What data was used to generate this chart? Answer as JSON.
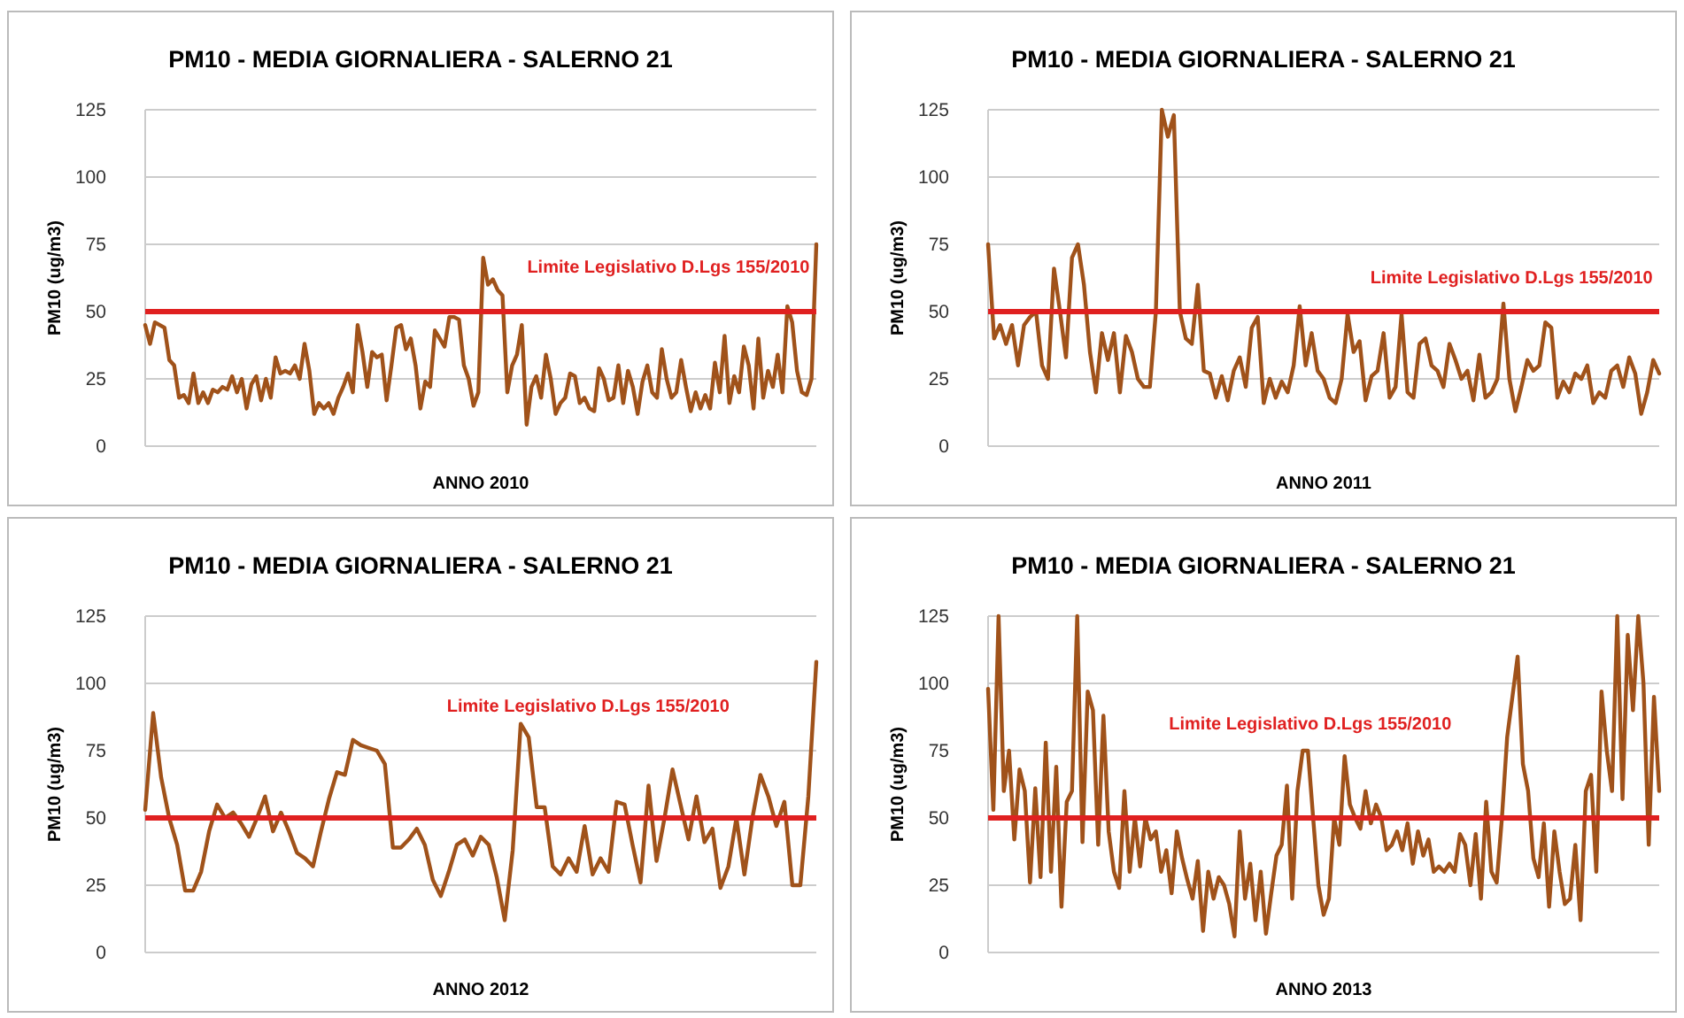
{
  "chart_data": [
    {
      "type": "line",
      "title": "PM10 - MEDIA GIORNALIERA - SALERNO 21",
      "xlabel": "ANNO 2010",
      "ylabel": "PM10 (ug/m3)",
      "ylim": [
        0,
        125
      ],
      "yticks": [
        0,
        25,
        50,
        75,
        100,
        125
      ],
      "grid": "y",
      "tick_labels": "y",
      "ref_lines": [
        {
          "axis": "y",
          "value": 50,
          "label": "Limite Legislativo  D.Lgs 155/2010",
          "color": "#e02020"
        }
      ],
      "categories": [
        null,
        null,
        null,
        null,
        null,
        null,
        null,
        null,
        null,
        null,
        null,
        null,
        null,
        null,
        null,
        null,
        null,
        null,
        null,
        null,
        null,
        null,
        null,
        null,
        null,
        null,
        null,
        null,
        null,
        null,
        null,
        null,
        null,
        null,
        null,
        null,
        null,
        null,
        null,
        null,
        null,
        null,
        null,
        null,
        null,
        null,
        null,
        null,
        null,
        null,
        null,
        null,
        null,
        null,
        null,
        null,
        null,
        null,
        null,
        null,
        null,
        null,
        null,
        null,
        null,
        null,
        null,
        null,
        null,
        null,
        null,
        null,
        null,
        null,
        null,
        null,
        null,
        null,
        null,
        null,
        null,
        null,
        null,
        null,
        null,
        null,
        null,
        null,
        null,
        null,
        null,
        null,
        null,
        null,
        null,
        null,
        null,
        null,
        null,
        null,
        null,
        null,
        null,
        null,
        null,
        null,
        null,
        null,
        null,
        null,
        null,
        null,
        null,
        null,
        null,
        null,
        null,
        null,
        null,
        null,
        null,
        null,
        null,
        null,
        null,
        null,
        null,
        null,
        null,
        null,
        null,
        null,
        null,
        null,
        null,
        null,
        null,
        null,
        null,
        null
      ],
      "series": [
        {
          "color": "#a0521a",
          "values": [
            45,
            38,
            46,
            45,
            44,
            32,
            30,
            18,
            19,
            16,
            27,
            16,
            20,
            16,
            21,
            20,
            22,
            21,
            26,
            20,
            25,
            14,
            23,
            26,
            17,
            25,
            18,
            33,
            27,
            28,
            27,
            30,
            25,
            38,
            28,
            12,
            16,
            14,
            16,
            12,
            18,
            22,
            27,
            20,
            45,
            35,
            22,
            35,
            33,
            34,
            17,
            30,
            44,
            45,
            36,
            40,
            30,
            14,
            24,
            22,
            43,
            40,
            37,
            48,
            48,
            47,
            30,
            25,
            15,
            20,
            70,
            60,
            62,
            58,
            56,
            20,
            30,
            34,
            45,
            8,
            22,
            26,
            18,
            34,
            25,
            12,
            16,
            18,
            27,
            26,
            16,
            18,
            14,
            13,
            29,
            25,
            17,
            18,
            30,
            16,
            28,
            22,
            12,
            24,
            30,
            20,
            18,
            36,
            25,
            18,
            20,
            32,
            22,
            13,
            20,
            14,
            19,
            14,
            31,
            20,
            41,
            16,
            26,
            20,
            37,
            30,
            14,
            40,
            18,
            28,
            22,
            34,
            20,
            52,
            46,
            28,
            20,
            19,
            25,
            75
          ]
        }
      ]
    },
    {
      "type": "line",
      "title": "PM10 - MEDIA GIORNALIERA - SALERNO 21",
      "xlabel": "ANNO 2011",
      "ylabel": "PM10 (ug/m3)",
      "ylim": [
        0,
        125
      ],
      "yticks": [
        0,
        25,
        50,
        75,
        100,
        125
      ],
      "grid": "y",
      "tick_labels": "y",
      "ref_lines": [
        {
          "axis": "y",
          "value": 50,
          "label": "Limite Legislativo  D.Lgs 155/2010",
          "color": "#e02020"
        }
      ],
      "categories": [
        null,
        null,
        null,
        null,
        null,
        null,
        null,
        null,
        null,
        null,
        null,
        null,
        null,
        null,
        null,
        null,
        null,
        null,
        null,
        null,
        null,
        null,
        null,
        null,
        null,
        null,
        null,
        null,
        null,
        null,
        null,
        null,
        null,
        null,
        null,
        null,
        null,
        null,
        null,
        null,
        null,
        null,
        null,
        null,
        null,
        null,
        null,
        null,
        null,
        null,
        null,
        null,
        null,
        null,
        null,
        null,
        null,
        null,
        null,
        null,
        null,
        null,
        null,
        null,
        null,
        null,
        null,
        null,
        null,
        null,
        null,
        null,
        null,
        null,
        null,
        null,
        null,
        null,
        null,
        null,
        null,
        null,
        null,
        null,
        null,
        null,
        null,
        null,
        null,
        null,
        null,
        null,
        null,
        null,
        null,
        null,
        null,
        null,
        null,
        null,
        null,
        null,
        null,
        null,
        null,
        null,
        null,
        null,
        null,
        null,
        null,
        null,
        null
      ],
      "series": [
        {
          "color": "#a0521a",
          "values": [
            75,
            40,
            45,
            38,
            45,
            30,
            45,
            48,
            50,
            30,
            25,
            66,
            50,
            33,
            70,
            75,
            60,
            35,
            20,
            42,
            32,
            42,
            20,
            41,
            35,
            25,
            22,
            22,
            50,
            125,
            115,
            123,
            50,
            40,
            38,
            60,
            28,
            27,
            18,
            26,
            17,
            28,
            33,
            22,
            44,
            48,
            16,
            25,
            18,
            24,
            20,
            30,
            52,
            30,
            42,
            28,
            25,
            18,
            16,
            25,
            49,
            35,
            39,
            17,
            26,
            28,
            42,
            18,
            22,
            49,
            20,
            18,
            38,
            40,
            30,
            28,
            22,
            38,
            32,
            25,
            28,
            17,
            34,
            18,
            20,
            25,
            53,
            25,
            13,
            22,
            32,
            28,
            30,
            46,
            44,
            18,
            24,
            20,
            27,
            25,
            30,
            16,
            20,
            18,
            28,
            30,
            22,
            33,
            27,
            12,
            20,
            32,
            27
          ]
        }
      ]
    },
    {
      "type": "line",
      "title": "PM10 - MEDIA GIORNALIERA - SALERNO 21",
      "xlabel": "ANNO 2012",
      "ylabel": "PM10 (ug/m3)",
      "ylim": [
        0,
        125
      ],
      "yticks": [
        0,
        25,
        50,
        75,
        100,
        125
      ],
      "grid": "y",
      "tick_labels": "y",
      "ref_lines": [
        {
          "axis": "y",
          "value": 50,
          "label": "Limite Legislativo  D.Lgs 155/2010",
          "color": "#e02020"
        }
      ],
      "categories": [
        null,
        null,
        null,
        null,
        null,
        null,
        null,
        null,
        null,
        null,
        null,
        null,
        null,
        null,
        null,
        null,
        null,
        null,
        null,
        null,
        null,
        null,
        null,
        null,
        null,
        null,
        null,
        null,
        null,
        null,
        null,
        null,
        null,
        null,
        null,
        null,
        null,
        null,
        null,
        null,
        null,
        null,
        null,
        null,
        null,
        null,
        null,
        null,
        null,
        null,
        null,
        null,
        null,
        null,
        null,
        null,
        null,
        null,
        null,
        null,
        null,
        null,
        null,
        null,
        null,
        null,
        null,
        null,
        null,
        null,
        null,
        null,
        null,
        null,
        null,
        null,
        null,
        null,
        null,
        null,
        null,
        null,
        null,
        null,
        null
      ],
      "series": [
        {
          "color": "#a0521a",
          "values": [
            53,
            89,
            65,
            50,
            40,
            23,
            23,
            30,
            45,
            55,
            50,
            52,
            48,
            43,
            50,
            58,
            45,
            52,
            45,
            37,
            35,
            32,
            45,
            57,
            67,
            66,
            79,
            77,
            76,
            75,
            70,
            39,
            39,
            42,
            46,
            40,
            27,
            21,
            30,
            40,
            42,
            36,
            43,
            40,
            28,
            12,
            38,
            85,
            80,
            54,
            54,
            32,
            29,
            35,
            30,
            47,
            29,
            35,
            30,
            56,
            55,
            40,
            26,
            62,
            34,
            50,
            68,
            55,
            42,
            58,
            41,
            46,
            24,
            32,
            50,
            29,
            50,
            66,
            58,
            47,
            56,
            25,
            25,
            58,
            108
          ]
        }
      ]
    },
    {
      "type": "line",
      "title": "PM10 - MEDIA GIORNALIERA - SALERNO 21",
      "xlabel": "ANNO 2013",
      "ylabel": "PM10 (ug/m3)",
      "ylim": [
        0,
        125
      ],
      "yticks": [
        0,
        25,
        50,
        75,
        100,
        125
      ],
      "grid": "y",
      "tick_labels": "y",
      "ref_lines": [
        {
          "axis": "y",
          "value": 50,
          "label": "Limite Legislativo  D.Lgs 155/2010",
          "color": "#e02020"
        }
      ],
      "categories": [
        null,
        null,
        null,
        null,
        null,
        null,
        null,
        null,
        null,
        null,
        null,
        null,
        null,
        null,
        null,
        null,
        null,
        null,
        null,
        null,
        null,
        null,
        null,
        null,
        null,
        null,
        null,
        null,
        null,
        null,
        null,
        null,
        null,
        null,
        null,
        null,
        null,
        null,
        null,
        null,
        null,
        null,
        null,
        null,
        null,
        null,
        null,
        null,
        null,
        null,
        null,
        null,
        null,
        null,
        null,
        null,
        null,
        null,
        null,
        null,
        null,
        null,
        null,
        null,
        null,
        null,
        null,
        null,
        null,
        null,
        null,
        null,
        null,
        null,
        null,
        null,
        null,
        null,
        null,
        null,
        null,
        null,
        null,
        null,
        null,
        null,
        null,
        null,
        null,
        null,
        null,
        null,
        null,
        null,
        null,
        null,
        null,
        null,
        null,
        null,
        null,
        null,
        null,
        null,
        null,
        null,
        null,
        null,
        null,
        null,
        null,
        null,
        null,
        null,
        null,
        null,
        null,
        null,
        null,
        null,
        null,
        null,
        null,
        null,
        null,
        null,
        null,
        null,
        null
      ],
      "series": [
        {
          "color": "#a0521a",
          "values": [
            98,
            53,
            125,
            60,
            75,
            42,
            68,
            60,
            26,
            61,
            28,
            78,
            30,
            69,
            17,
            56,
            60,
            125,
            41,
            97,
            90,
            40,
            88,
            45,
            30,
            24,
            60,
            30,
            50,
            32,
            50,
            42,
            45,
            30,
            38,
            22,
            45,
            35,
            27,
            20,
            34,
            8,
            30,
            20,
            28,
            25,
            18,
            6,
            45,
            20,
            33,
            12,
            30,
            7,
            22,
            36,
            40,
            62,
            20,
            60,
            75,
            75,
            50,
            25,
            14,
            20,
            50,
            40,
            73,
            55,
            50,
            46,
            60,
            48,
            55,
            50,
            38,
            40,
            45,
            38,
            48,
            33,
            45,
            36,
            42,
            30,
            32,
            30,
            33,
            30,
            44,
            40,
            25,
            44,
            20,
            56,
            30,
            26,
            50,
            80,
            95,
            110,
            70,
            60,
            35,
            28,
            48,
            17,
            45,
            30,
            18,
            20,
            40,
            12,
            60,
            66,
            30,
            97,
            75,
            60,
            125,
            57,
            118,
            90,
            125,
            100,
            40,
            95,
            60
          ]
        }
      ]
    }
  ]
}
